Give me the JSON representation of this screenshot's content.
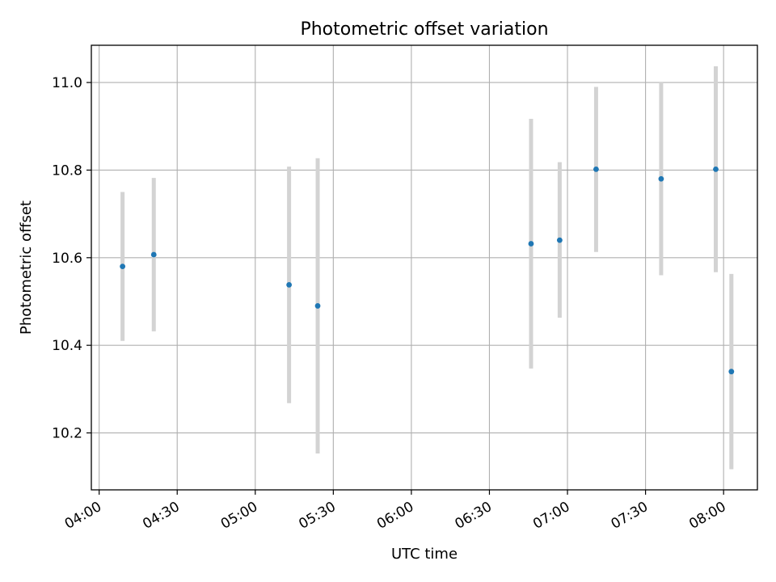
{
  "chart_data": {
    "type": "scatter",
    "title": "Photometric offset variation",
    "xlabel": "UTC time",
    "ylabel": "Photometric offset",
    "x_ticks": [
      "04:00",
      "04:30",
      "05:00",
      "05:30",
      "06:00",
      "06:30",
      "07:00",
      "07:30",
      "08:00"
    ],
    "y_ticks": [
      "10.2",
      "10.4",
      "10.6",
      "10.8",
      "11.0"
    ],
    "xlim": [
      "03:57",
      "08:13"
    ],
    "ylim": [
      10.07,
      11.085
    ],
    "grid": true,
    "point_color": "#1f77b4",
    "errorbar_color": "#d3d3d3",
    "points": [
      {
        "time": "04:09",
        "y": 10.58,
        "yerr_low": 10.41,
        "yerr_high": 10.75
      },
      {
        "time": "04:21",
        "y": 10.607,
        "yerr_low": 10.432,
        "yerr_high": 10.782
      },
      {
        "time": "05:13",
        "y": 10.538,
        "yerr_low": 10.268,
        "yerr_high": 10.808
      },
      {
        "time": "05:24",
        "y": 10.49,
        "yerr_low": 10.153,
        "yerr_high": 10.827
      },
      {
        "time": "06:46",
        "y": 10.632,
        "yerr_low": 10.347,
        "yerr_high": 10.917
      },
      {
        "time": "06:57",
        "y": 10.64,
        "yerr_low": 10.463,
        "yerr_high": 10.818
      },
      {
        "time": "07:11",
        "y": 10.802,
        "yerr_low": 10.613,
        "yerr_high": 10.99
      },
      {
        "time": "07:36",
        "y": 10.78,
        "yerr_low": 10.56,
        "yerr_high": 11.0
      },
      {
        "time": "07:57",
        "y": 10.802,
        "yerr_low": 10.567,
        "yerr_high": 11.037
      },
      {
        "time": "08:03",
        "y": 10.34,
        "yerr_low": 10.117,
        "yerr_high": 10.563
      }
    ]
  }
}
